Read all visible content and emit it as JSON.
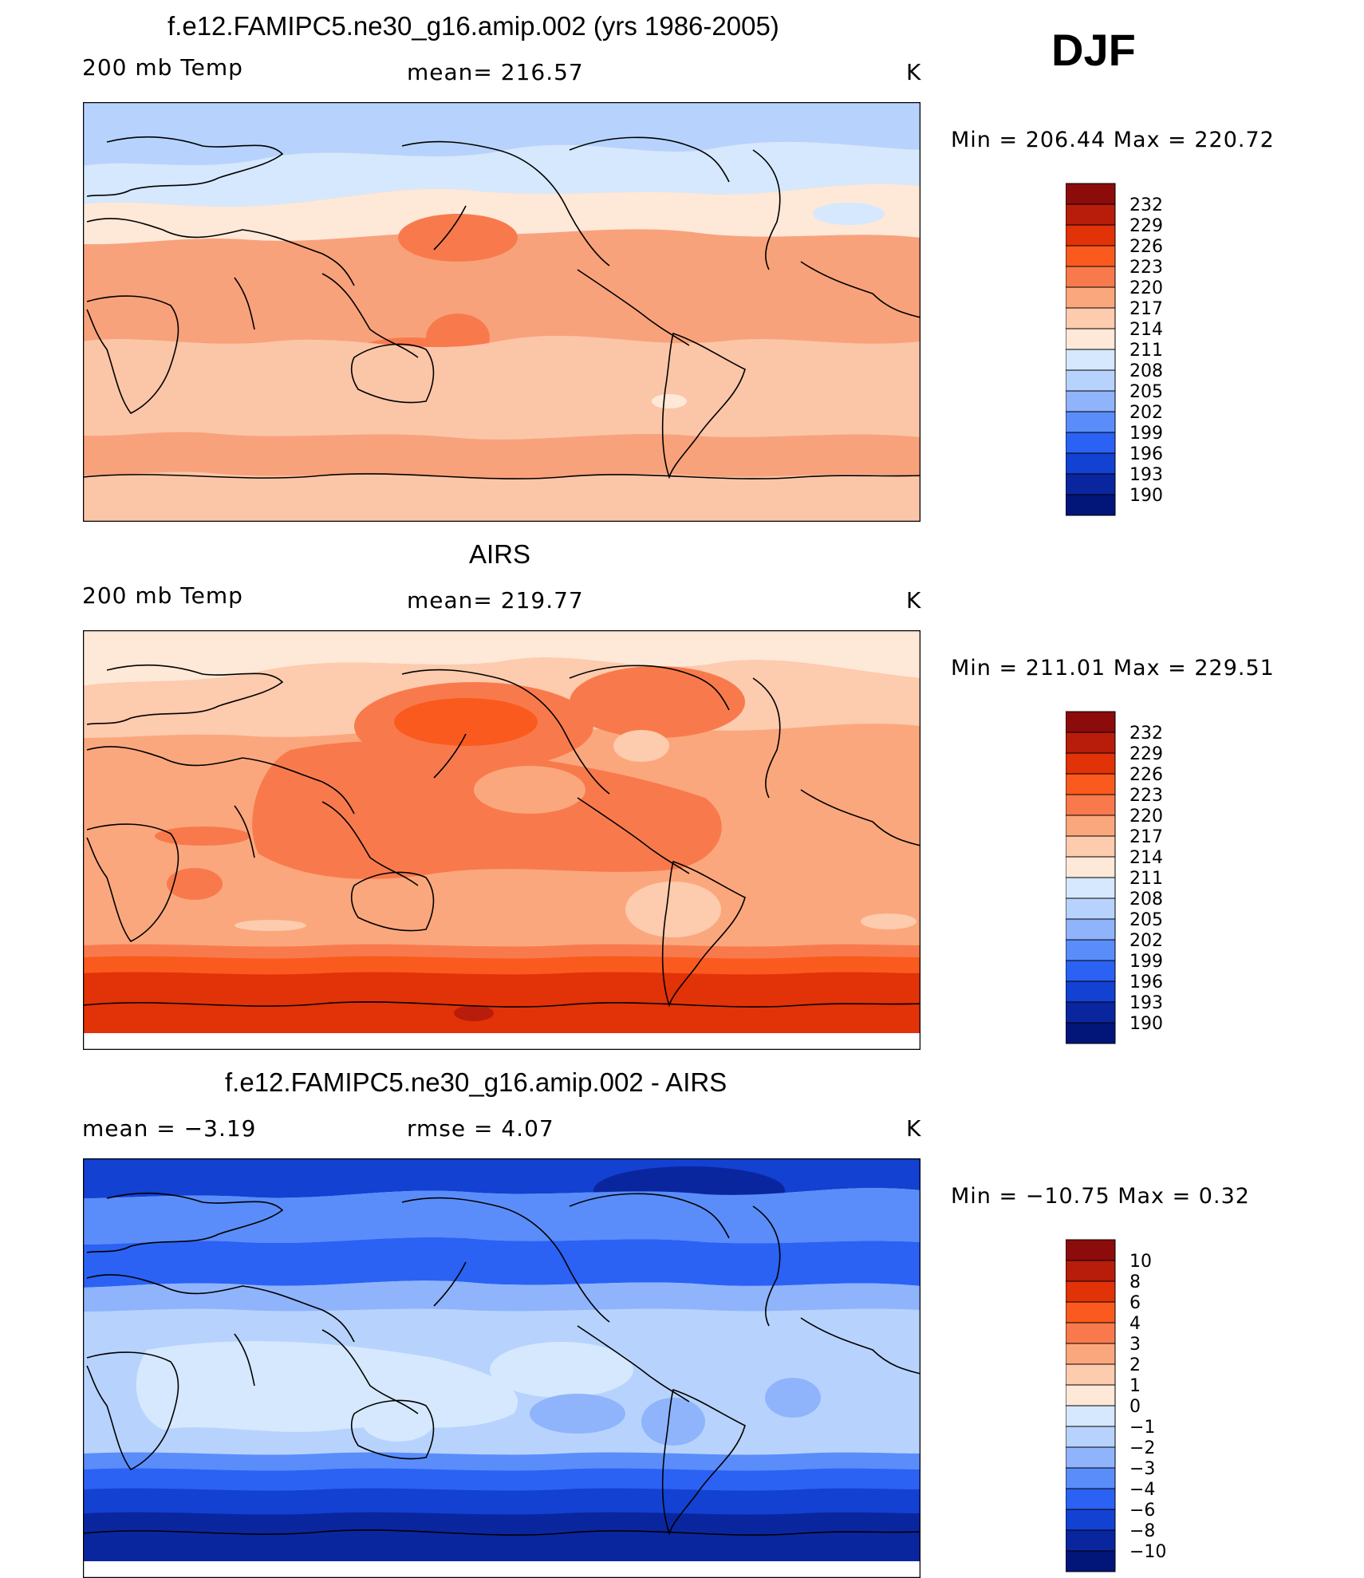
{
  "season": "DJF",
  "panels": [
    {
      "title": "f.e12.FAMIPC5.ne30_g16.amip.002 (yrs 1986-2005)",
      "left_label": "200 mb Temp",
      "center_label": "mean=  216.57",
      "units": "K",
      "minmax": "Min  =  206.44  Max  =  220.72",
      "bands": [
        {
          "c": "#d2e5fb"
        },
        {
          "c": "#fde6d4"
        },
        {
          "c": "#fbc6a8"
        },
        {
          "c": "#f8a27b"
        },
        {
          "c": "#fbc6a8"
        },
        {
          "c": "#f8a27b"
        },
        {
          "c": "#fbc6a8"
        },
        {
          "c": "#fbc6a8"
        }
      ],
      "colorbar": {
        "labels": [
          "232",
          "229",
          "226",
          "223",
          "220",
          "217",
          "214",
          "211",
          "208",
          "205",
          "202",
          "199",
          "196",
          "193",
          "190"
        ],
        "colors": [
          "#8c0c0c",
          "#b81d0c",
          "#e23207",
          "#fa5a1e",
          "#f87a4c",
          "#fba77d",
          "#fdcbae",
          "#fee8d8",
          "#d5e8fd",
          "#b7d3fd",
          "#8fb4fc",
          "#5a8dfa",
          "#2b62f4",
          "#1341d2",
          "#0a269f",
          "#021578"
        ]
      }
    },
    {
      "title": "AIRS",
      "left_label": "200 mb Temp",
      "center_label": "mean=  219.77",
      "units": "K",
      "minmax": "Min  =  211.01  Max  =  229.51",
      "colorbar": {
        "labels": [
          "232",
          "229",
          "226",
          "223",
          "220",
          "217",
          "214",
          "211",
          "208",
          "205",
          "202",
          "199",
          "196",
          "193",
          "190"
        ],
        "colors": [
          "#8c0c0c",
          "#b81d0c",
          "#e23207",
          "#fa5a1e",
          "#f87a4c",
          "#fba77d",
          "#fdcbae",
          "#fee8d8",
          "#d5e8fd",
          "#b7d3fd",
          "#8fb4fc",
          "#5a8dfa",
          "#2b62f4",
          "#1341d2",
          "#0a269f",
          "#021578"
        ]
      }
    },
    {
      "title": "f.e12.FAMIPC5.ne30_g16.amip.002 - AIRS",
      "left_label": "mean  =    −3.19",
      "center_label": "rmse  =     4.07",
      "units": "K",
      "minmax": "Min  =  −10.75  Max  =     0.32",
      "colorbar": {
        "labels": [
          "10",
          "8",
          "6",
          "4",
          "3",
          "2",
          "1",
          "0",
          "−1",
          "−2",
          "−3",
          "−4",
          "−6",
          "−8",
          "−10"
        ],
        "colors": [
          "#8c0c0c",
          "#b81d0c",
          "#e23207",
          "#fa5a1e",
          "#f87a4c",
          "#fba77d",
          "#fdcbae",
          "#fee8d8",
          "#d5e8fd",
          "#b7d3fd",
          "#8fb4fc",
          "#5a8dfa",
          "#2b62f4",
          "#1341d2",
          "#0a269f",
          "#021578"
        ]
      }
    }
  ],
  "colors": {
    "coast": "#000000",
    "frame": "#000000"
  }
}
